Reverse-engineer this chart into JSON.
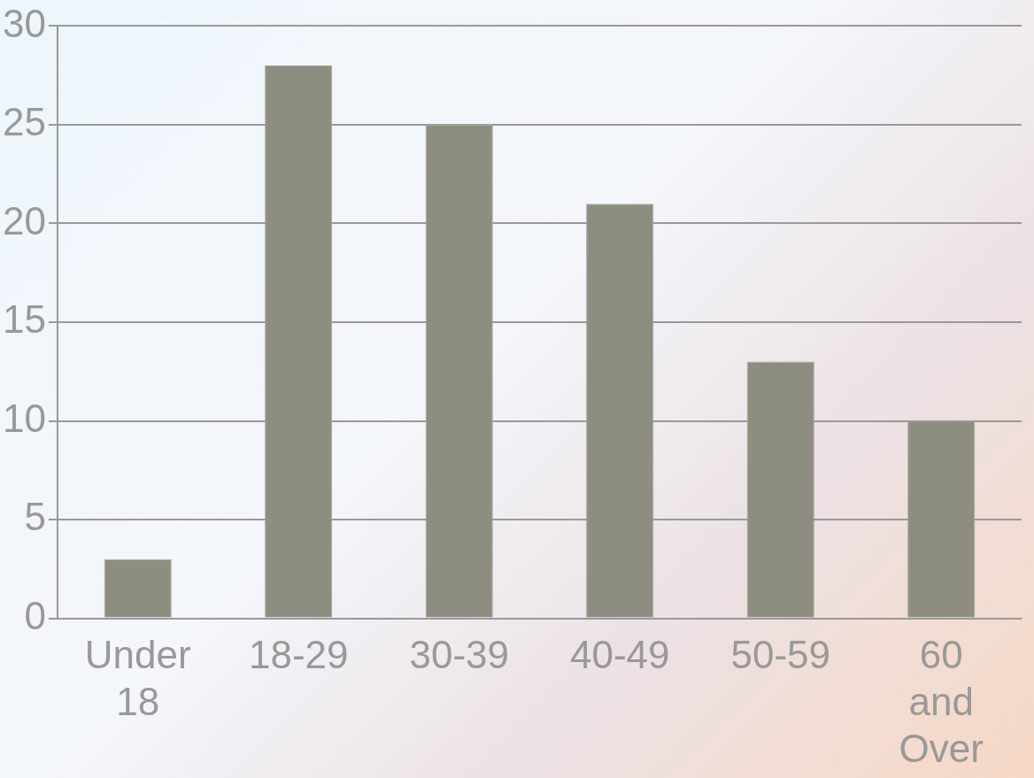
{
  "chart_data": {
    "type": "bar",
    "categories": [
      "Under 18",
      "18-29",
      "30-39",
      "40-49",
      "50-59",
      "60 and Over"
    ],
    "values": [
      3,
      28,
      25,
      21,
      13,
      10
    ],
    "color": "#8e8e80",
    "ylim": [
      0,
      30
    ],
    "yticks": [
      0,
      5,
      10,
      15,
      20,
      25,
      30
    ],
    "grid": "y",
    "legend": false
  }
}
